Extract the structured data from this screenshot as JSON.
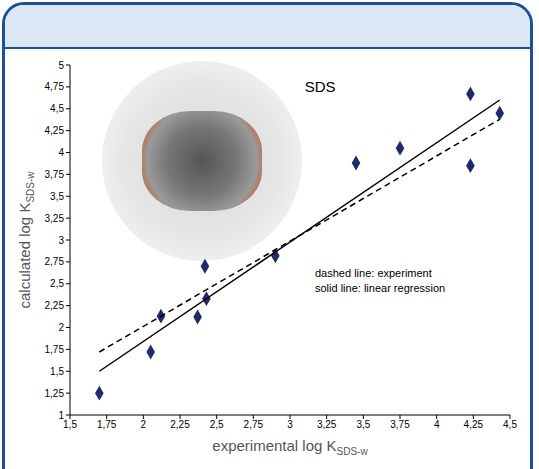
{
  "chart_data": {
    "type": "scatter",
    "title": "SDS",
    "x_label": {
      "text": "experimental log K",
      "subscript": "SDS-w"
    },
    "y_label": {
      "text": "calculated log K",
      "subscript": "SDS-w"
    },
    "annotations": [
      "dashed line: experiment",
      "solid line: linear regression"
    ],
    "xlim": [
      1.5,
      4.5
    ],
    "xticks": [
      {
        "value": 1.5,
        "label": "1,5"
      },
      {
        "value": 1.75,
        "label": "1,75"
      },
      2,
      {
        "value": 2.25,
        "label": "2,25"
      },
      {
        "value": 2.5,
        "label": "2,5"
      },
      {
        "value": 2.75,
        "label": "2,75"
      },
      3,
      {
        "value": 3.25,
        "label": "3,25"
      },
      {
        "value": 3.5,
        "label": "3,5"
      },
      {
        "value": 3.75,
        "label": "3,75"
      },
      4,
      {
        "value": 4.25,
        "label": "4,25"
      },
      {
        "value": 4.5,
        "label": "4,5"
      }
    ],
    "ylim": [
      1,
      5
    ],
    "yticks": [
      1,
      {
        "value": 1.25,
        "label": "1,25"
      },
      {
        "value": 1.5,
        "label": "1,5"
      },
      {
        "value": 1.75,
        "label": "1,75"
      },
      2,
      {
        "value": 2.25,
        "label": "2,25"
      },
      {
        "value": 2.5,
        "label": "2,5"
      },
      {
        "value": 2.75,
        "label": "2,75"
      },
      3,
      {
        "value": 3.25,
        "label": "3,25"
      },
      {
        "value": 3.5,
        "label": "3,5"
      },
      {
        "value": 3.75,
        "label": "3,75"
      },
      4,
      {
        "value": 4.25,
        "label": "4,25"
      },
      {
        "value": 4.5,
        "label": "4,5"
      },
      {
        "value": 4.75,
        "label": "4,75"
      },
      5
    ],
    "grid": false,
    "series": [
      {
        "type": "scatter",
        "marker": "diamond",
        "color": "#1f2a6b",
        "x": [
          1.7,
          2.05,
          2.12,
          2.37,
          2.42,
          2.43,
          2.9,
          3.45,
          3.75,
          4.23,
          4.23,
          4.43
        ],
        "y": [
          1.25,
          1.72,
          2.13,
          2.12,
          2.7,
          2.33,
          2.82,
          3.88,
          4.05,
          4.67,
          3.85,
          4.45
        ]
      },
      {
        "type": "line",
        "line_style": "dashed",
        "color": "#000000",
        "x": [
          1.7,
          4.43
        ],
        "y": [
          1.72,
          4.38
        ]
      },
      {
        "type": "line",
        "line_style": "solid",
        "color": "#000000",
        "x": [
          1.7,
          4.43
        ],
        "y": [
          1.5,
          4.6
        ]
      }
    ]
  }
}
